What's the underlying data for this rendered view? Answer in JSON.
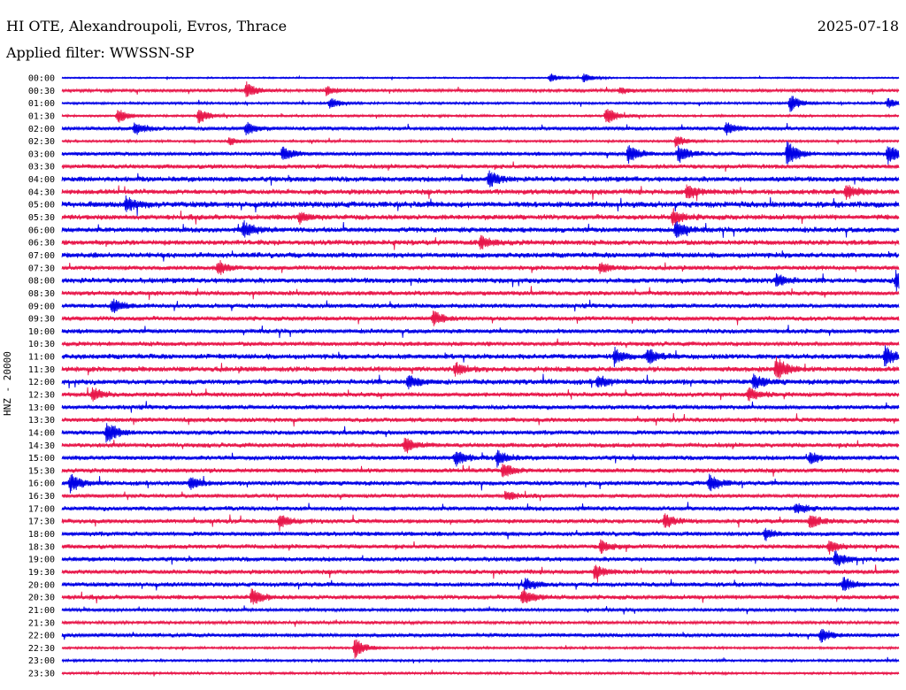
{
  "header": {
    "station": "HI OTE, Alexandroupoli, Evros, Thrace",
    "date": "2025-07-18",
    "filter": "Applied filter: WWSSN-SP"
  },
  "channel_label": "HNZ - 20000",
  "colors": {
    "even_trace": "#0000e6",
    "odd_trace": "#e8174a",
    "text": "#000000",
    "background": "#ffffff"
  },
  "chart_data": {
    "type": "line",
    "title": "HI OTE, Alexandroupoli, Evros, Thrace",
    "ylabel": "HNZ - 20000",
    "row_minutes": 30,
    "rows": [
      "00:00",
      "00:30",
      "01:00",
      "01:30",
      "02:00",
      "02:30",
      "03:00",
      "03:30",
      "04:00",
      "04:30",
      "05:00",
      "05:30",
      "06:00",
      "06:30",
      "07:00",
      "07:30",
      "08:00",
      "08:30",
      "09:00",
      "09:30",
      "10:00",
      "10:30",
      "11:00",
      "11:30",
      "12:00",
      "12:30",
      "13:00",
      "13:30",
      "14:00",
      "14:30",
      "15:00",
      "15:30",
      "16:00",
      "16:30",
      "17:00",
      "17:30",
      "18:00",
      "18:30",
      "19:00",
      "19:30",
      "20:00",
      "20:30",
      "21:00",
      "21:30",
      "22:00",
      "22:30",
      "23:00",
      "23:30"
    ],
    "noise_level": [
      1.0,
      2.0,
      1.5,
      1.5,
      2.5,
      1.5,
      2.5,
      3.0,
      3.5,
      3.5,
      4.0,
      3.5,
      3.5,
      3.5,
      3.5,
      3.0,
      3.5,
      3.0,
      3.0,
      3.0,
      3.0,
      3.0,
      3.5,
      3.5,
      3.5,
      3.0,
      3.0,
      3.0,
      3.0,
      3.0,
      3.0,
      3.0,
      3.0,
      2.5,
      3.0,
      3.0,
      3.0,
      3.0,
      3.0,
      3.0,
      3.0,
      3.0,
      2.0,
      2.0,
      2.5,
      1.5,
      1.5,
      1.5
    ],
    "events": [
      {
        "row": "00:00",
        "minute": 17.5,
        "amplitude": 5
      },
      {
        "row": "00:00",
        "minute": 18.7,
        "amplitude": 5
      },
      {
        "row": "00:30",
        "minute": 6.6,
        "amplitude": 9
      },
      {
        "row": "00:30",
        "minute": 9.5,
        "amplitude": 5
      },
      {
        "row": "00:30",
        "minute": 20.0,
        "amplitude": 4
      },
      {
        "row": "01:00",
        "minute": 9.6,
        "amplitude": 6
      },
      {
        "row": "01:00",
        "minute": 26.1,
        "amplitude": 10
      },
      {
        "row": "01:00",
        "minute": 29.6,
        "amplitude": 6
      },
      {
        "row": "01:30",
        "minute": 2.0,
        "amplitude": 9
      },
      {
        "row": "01:30",
        "minute": 4.9,
        "amplitude": 9
      },
      {
        "row": "01:30",
        "minute": 19.5,
        "amplitude": 11
      },
      {
        "row": "02:00",
        "minute": 2.6,
        "amplitude": 8
      },
      {
        "row": "02:00",
        "minute": 6.6,
        "amplitude": 7
      },
      {
        "row": "02:00",
        "minute": 23.8,
        "amplitude": 7
      },
      {
        "row": "02:30",
        "minute": 6.0,
        "amplitude": 5
      },
      {
        "row": "02:30",
        "minute": 22.0,
        "amplitude": 7
      },
      {
        "row": "03:00",
        "minute": 7.9,
        "amplitude": 8
      },
      {
        "row": "03:00",
        "minute": 20.3,
        "amplitude": 11
      },
      {
        "row": "03:00",
        "minute": 22.1,
        "amplitude": 10
      },
      {
        "row": "03:00",
        "minute": 26.0,
        "amplitude": 15
      },
      {
        "row": "03:00",
        "minute": 29.6,
        "amplitude": 12
      },
      {
        "row": "04:00",
        "minute": 15.3,
        "amplitude": 9
      },
      {
        "row": "04:30",
        "minute": 22.4,
        "amplitude": 8
      },
      {
        "row": "04:30",
        "minute": 28.1,
        "amplitude": 8
      },
      {
        "row": "05:00",
        "minute": 2.3,
        "amplitude": 8
      },
      {
        "row": "05:30",
        "minute": 8.5,
        "amplitude": 6
      },
      {
        "row": "05:30",
        "minute": 21.9,
        "amplitude": 9
      },
      {
        "row": "06:00",
        "minute": 6.5,
        "amplitude": 9
      },
      {
        "row": "06:00",
        "minute": 22.0,
        "amplitude": 10
      },
      {
        "row": "06:30",
        "minute": 15.0,
        "amplitude": 7
      },
      {
        "row": "07:30",
        "minute": 5.6,
        "amplitude": 8
      },
      {
        "row": "07:30",
        "minute": 19.3,
        "amplitude": 6
      },
      {
        "row": "08:00",
        "minute": 25.6,
        "amplitude": 8
      },
      {
        "row": "08:00",
        "minute": 29.9,
        "amplitude": 11
      },
      {
        "row": "09:00",
        "minute": 1.8,
        "amplitude": 8
      },
      {
        "row": "09:30",
        "minute": 13.3,
        "amplitude": 8
      },
      {
        "row": "11:00",
        "minute": 19.8,
        "amplitude": 9
      },
      {
        "row": "11:00",
        "minute": 21.0,
        "amplitude": 10
      },
      {
        "row": "11:00",
        "minute": 29.5,
        "amplitude": 12
      },
      {
        "row": "11:30",
        "minute": 14.1,
        "amplitude": 7
      },
      {
        "row": "11:30",
        "minute": 25.6,
        "amplitude": 14
      },
      {
        "row": "12:00",
        "minute": 12.4,
        "amplitude": 8
      },
      {
        "row": "12:00",
        "minute": 19.2,
        "amplitude": 7
      },
      {
        "row": "12:00",
        "minute": 24.8,
        "amplitude": 8
      },
      {
        "row": "12:30",
        "minute": 1.1,
        "amplitude": 7
      },
      {
        "row": "12:30",
        "minute": 24.6,
        "amplitude": 8
      },
      {
        "row": "14:00",
        "minute": 1.6,
        "amplitude": 13
      },
      {
        "row": "14:30",
        "minute": 12.3,
        "amplitude": 9
      },
      {
        "row": "15:00",
        "minute": 14.1,
        "amplitude": 9
      },
      {
        "row": "15:00",
        "minute": 15.6,
        "amplitude": 9
      },
      {
        "row": "15:00",
        "minute": 26.8,
        "amplitude": 7
      },
      {
        "row": "15:30",
        "minute": 15.8,
        "amplitude": 9
      },
      {
        "row": "16:00",
        "minute": 0.3,
        "amplitude": 10
      },
      {
        "row": "16:00",
        "minute": 4.6,
        "amplitude": 7
      },
      {
        "row": "16:00",
        "minute": 23.2,
        "amplitude": 10
      },
      {
        "row": "16:30",
        "minute": 15.9,
        "amplitude": 6
      },
      {
        "row": "17:00",
        "minute": 26.3,
        "amplitude": 6
      },
      {
        "row": "17:30",
        "minute": 7.8,
        "amplitude": 9
      },
      {
        "row": "17:30",
        "minute": 21.6,
        "amplitude": 8
      },
      {
        "row": "17:30",
        "minute": 26.8,
        "amplitude": 8
      },
      {
        "row": "18:00",
        "minute": 25.2,
        "amplitude": 6
      },
      {
        "row": "18:30",
        "minute": 19.3,
        "amplitude": 8
      },
      {
        "row": "18:30",
        "minute": 27.5,
        "amplitude": 7
      },
      {
        "row": "19:00",
        "minute": 27.7,
        "amplitude": 9
      },
      {
        "row": "19:30",
        "minute": 19.1,
        "amplitude": 8
      },
      {
        "row": "20:00",
        "minute": 16.6,
        "amplitude": 7
      },
      {
        "row": "20:00",
        "minute": 28.0,
        "amplitude": 8
      },
      {
        "row": "20:30",
        "minute": 6.8,
        "amplitude": 9
      },
      {
        "row": "20:30",
        "minute": 16.5,
        "amplitude": 10
      },
      {
        "row": "22:00",
        "minute": 27.2,
        "amplitude": 8
      },
      {
        "row": "22:30",
        "minute": 10.5,
        "amplitude": 12
      }
    ]
  }
}
